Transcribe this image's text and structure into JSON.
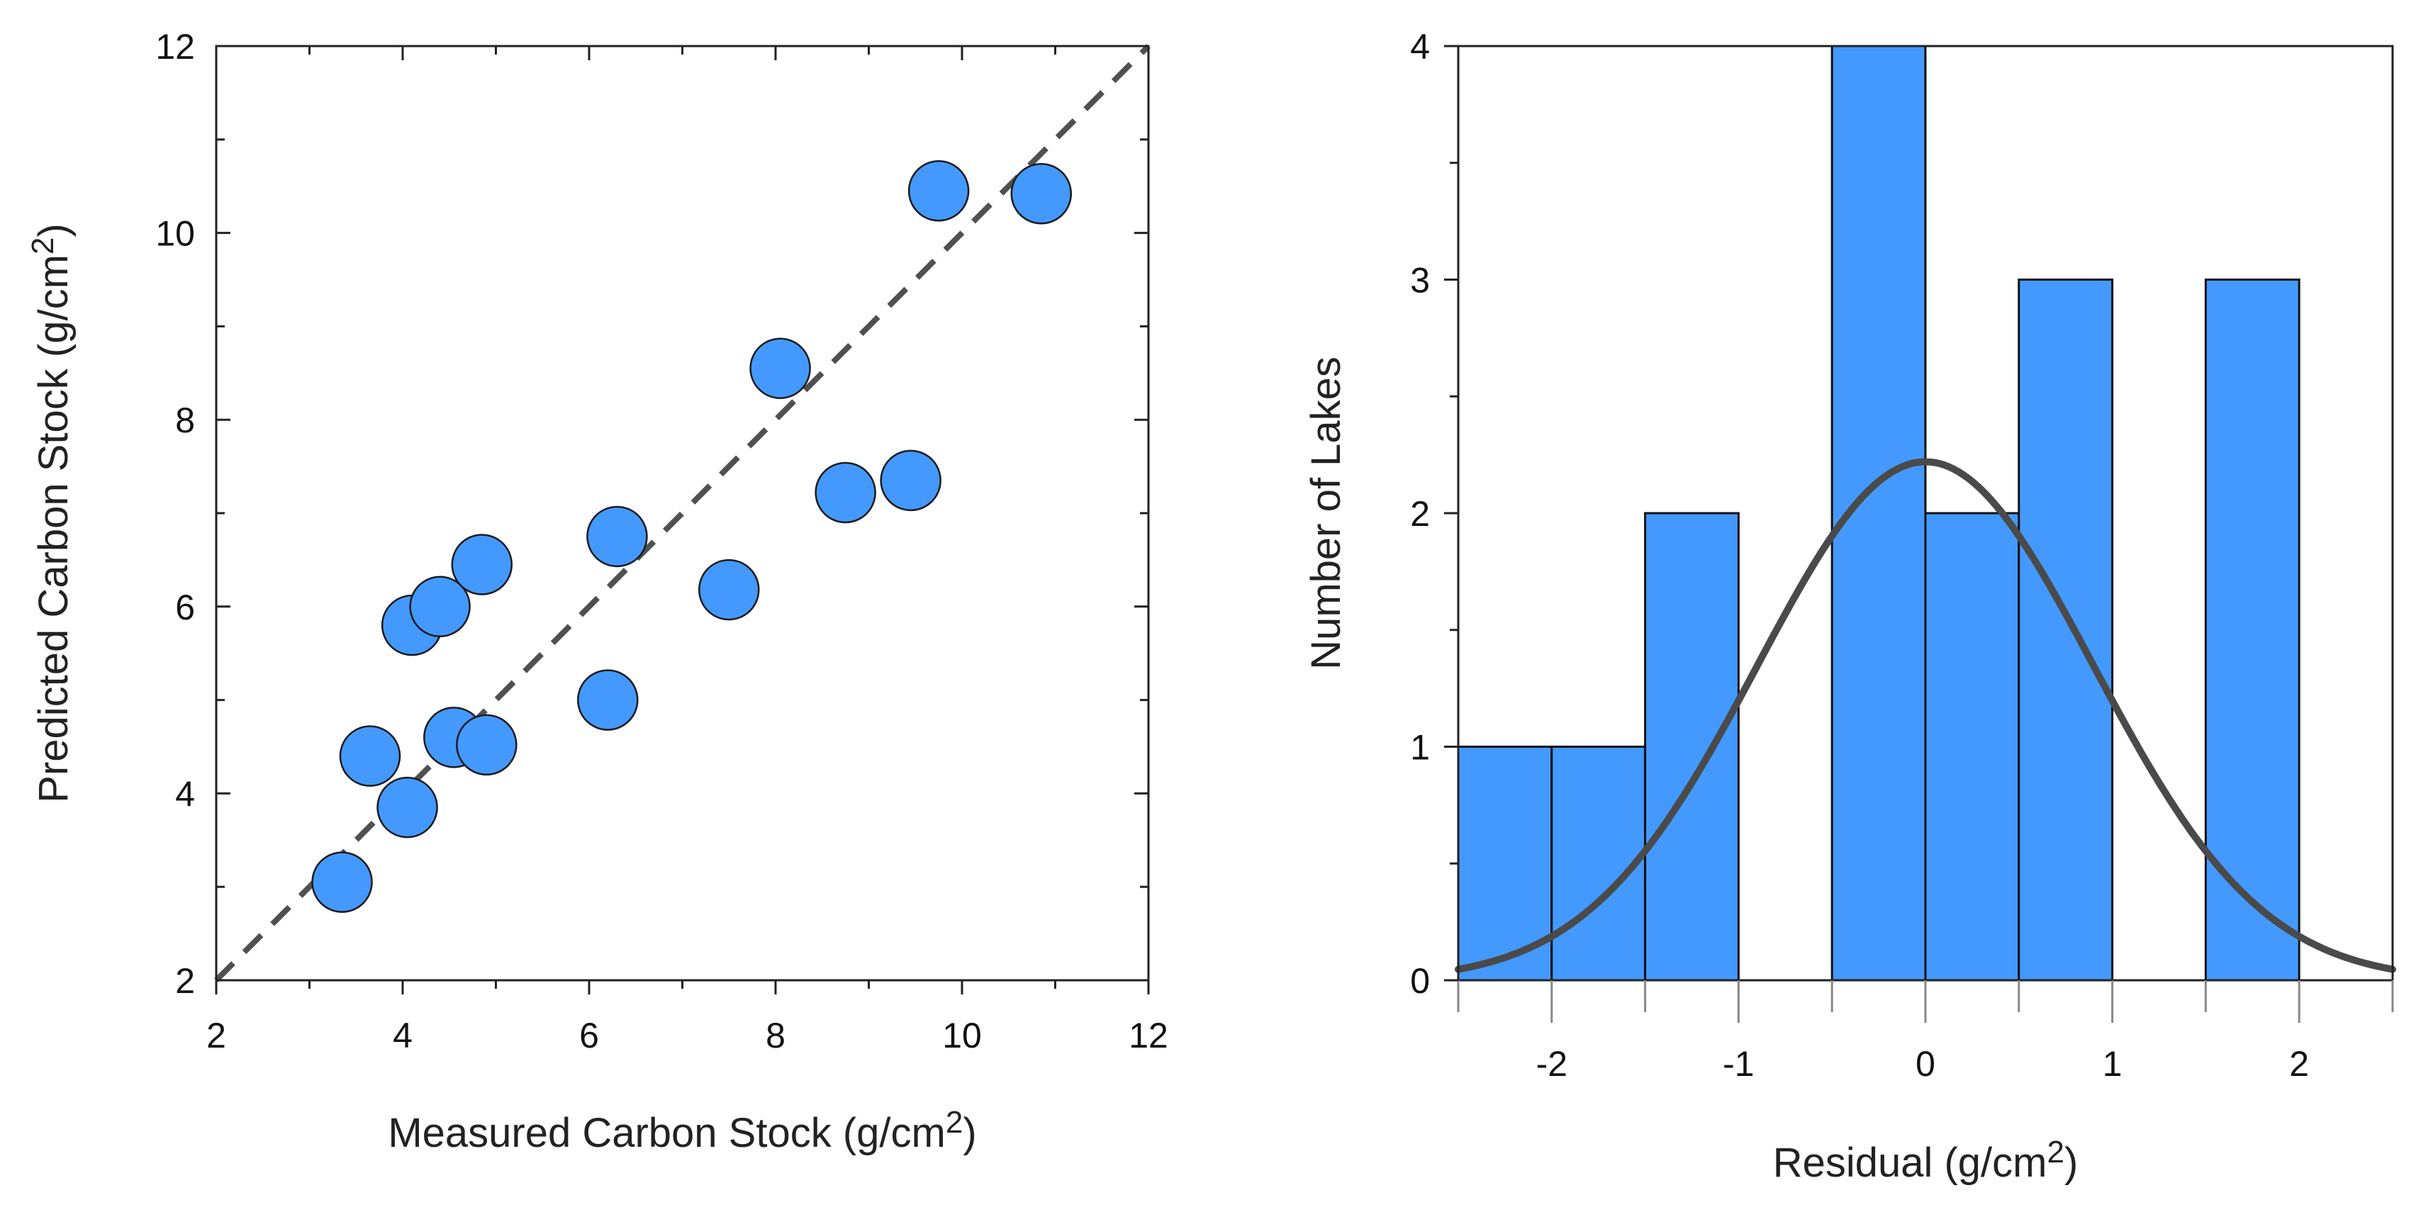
{
  "chart_data": [
    {
      "type": "scatter",
      "xlabel": "Measured Carbon Stock (g/cm",
      "ylabel": "Predicted Carbon Stock (g/cm",
      "unit_superscript": "2",
      "unit_close": ")",
      "xlim": [
        2,
        12
      ],
      "ylim": [
        2,
        12
      ],
      "major_ticks": [
        2,
        4,
        6,
        8,
        10,
        12
      ],
      "reference_line": {
        "style": "dashed",
        "from": [
          2,
          2
        ],
        "to": [
          12,
          12
        ]
      },
      "marker_color": "#4499ff",
      "points": [
        {
          "x": 3.35,
          "y": 3.05
        },
        {
          "x": 3.65,
          "y": 4.4
        },
        {
          "x": 4.05,
          "y": 3.85
        },
        {
          "x": 4.1,
          "y": 5.8
        },
        {
          "x": 4.4,
          "y": 6.0
        },
        {
          "x": 4.55,
          "y": 4.6
        },
        {
          "x": 4.9,
          "y": 4.52
        },
        {
          "x": 4.85,
          "y": 6.45
        },
        {
          "x": 6.2,
          "y": 5.0
        },
        {
          "x": 6.3,
          "y": 6.75
        },
        {
          "x": 7.5,
          "y": 6.18
        },
        {
          "x": 8.05,
          "y": 8.55
        },
        {
          "x": 8.75,
          "y": 7.22
        },
        {
          "x": 9.45,
          "y": 7.35
        },
        {
          "x": 9.75,
          "y": 10.45
        },
        {
          "x": 10.85,
          "y": 10.42
        }
      ]
    },
    {
      "type": "bar",
      "subtype": "histogram",
      "xlabel": "Residual (g/cm",
      "ylabel": "Number of Lakes",
      "unit_superscript": "2",
      "unit_close": ")",
      "xlim": [
        -2.5,
        2.5
      ],
      "ylim": [
        0,
        4
      ],
      "x_ticks": [
        -2,
        -1,
        0,
        1,
        2
      ],
      "y_ticks": [
        0,
        1,
        2,
        3,
        4
      ],
      "bar_color": "#4499ff",
      "bins": [
        {
          "from": -2.5,
          "to": -2.0,
          "count": 1
        },
        {
          "from": -2.0,
          "to": -1.5,
          "count": 1
        },
        {
          "from": -1.5,
          "to": -1.0,
          "count": 2
        },
        {
          "from": -1.0,
          "to": -0.5,
          "count": 0
        },
        {
          "from": -0.5,
          "to": 0.0,
          "count": 4
        },
        {
          "from": 0.0,
          "to": 0.5,
          "count": 2
        },
        {
          "from": 0.5,
          "to": 1.0,
          "count": 3
        },
        {
          "from": 1.0,
          "to": 1.5,
          "count": 0
        },
        {
          "from": 1.5,
          "to": 2.0,
          "count": 3
        }
      ],
      "normal_curve": {
        "mean": 0,
        "sd": 0.9,
        "peak": 2.22,
        "color": "#4a4a4a"
      }
    }
  ]
}
